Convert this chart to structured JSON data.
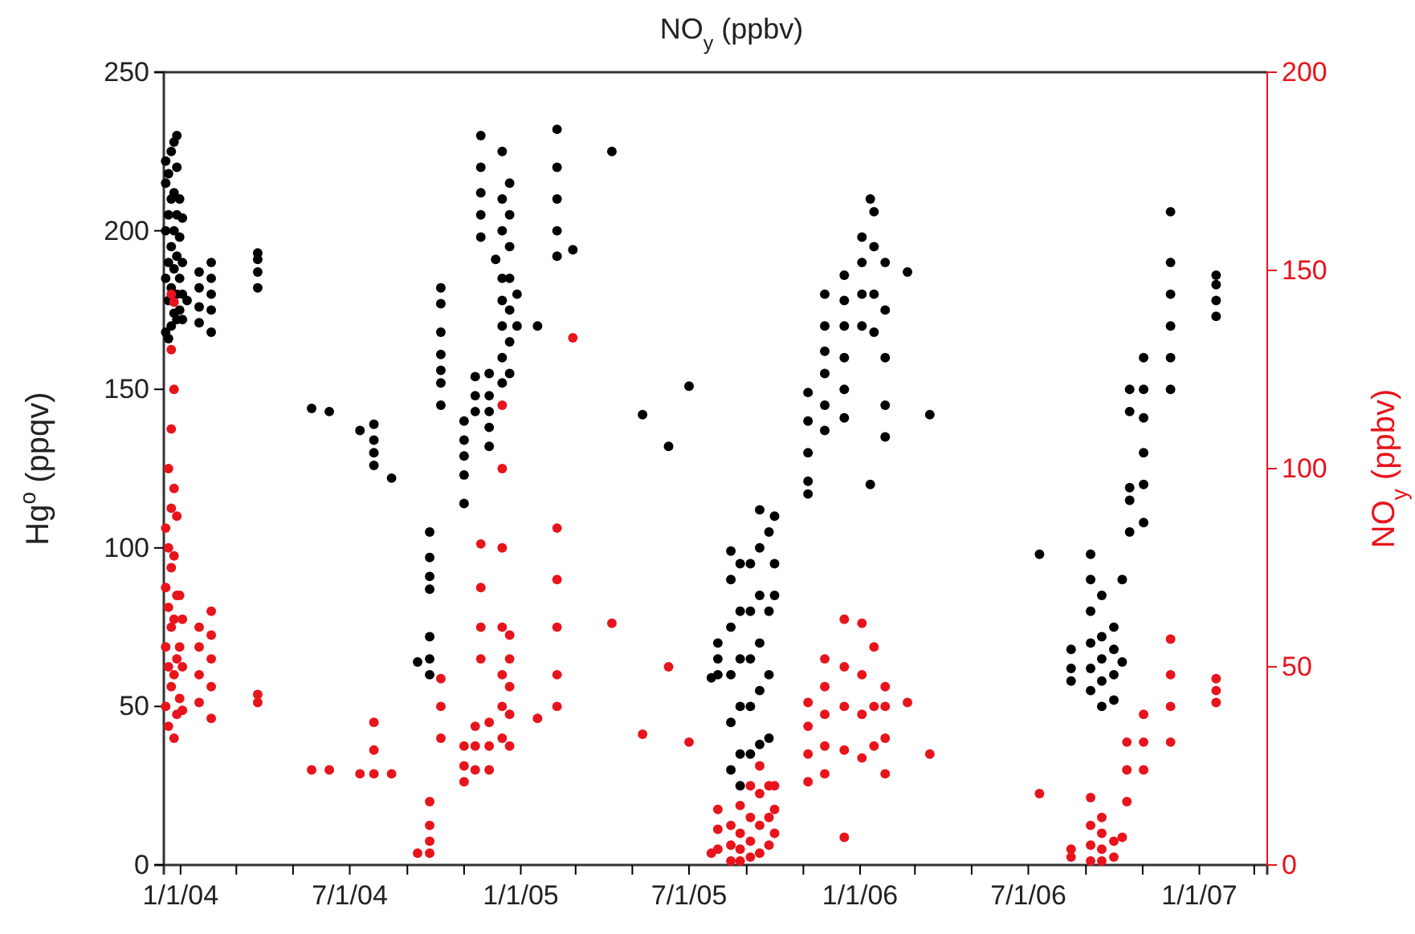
{
  "chart_data": {
    "type": "scatter",
    "title": "NO$_{y}$ (ppbv)",
    "ylabel": "Hg$^{o}$ (ppqv)",
    "y2label": "NO$_{y}$ (ppbv)",
    "xlim": [
      "2003-12-14",
      "2007-03-15"
    ],
    "xticks": [
      {
        "value": "2004-01-01",
        "label": "1/1/04"
      },
      {
        "value": "2004-03-01",
        "label": null
      },
      {
        "value": "2004-05-01",
        "label": null
      },
      {
        "value": "2004-07-01",
        "label": "7/1/04"
      },
      {
        "value": "2004-09-01",
        "label": null
      },
      {
        "value": "2004-11-01",
        "label": null
      },
      {
        "value": "2005-01-01",
        "label": "1/1/05"
      },
      {
        "value": "2005-03-01",
        "label": null
      },
      {
        "value": "2005-05-01",
        "label": null
      },
      {
        "value": "2005-07-01",
        "label": "7/1/05"
      },
      {
        "value": "2005-09-01",
        "label": null
      },
      {
        "value": "2005-11-01",
        "label": null
      },
      {
        "value": "2006-01-01",
        "label": "1/1/06"
      },
      {
        "value": "2006-03-01",
        "label": null
      },
      {
        "value": "2006-05-01",
        "label": null
      },
      {
        "value": "2006-07-01",
        "label": "7/1/06"
      },
      {
        "value": "2006-09-01",
        "label": null
      },
      {
        "value": "2006-11-01",
        "label": null
      },
      {
        "value": "2007-01-01",
        "label": "1/1/07"
      },
      {
        "value": "2007-03-01",
        "label": null
      }
    ],
    "ylim": [
      0,
      250
    ],
    "yticks": [
      0,
      50,
      100,
      150,
      200,
      250
    ],
    "y2lim": [
      0,
      200
    ],
    "y2ticks": [
      0,
      50,
      100,
      150,
      200
    ],
    "marker": "circle",
    "series": [
      {
        "color": "#000000",
        "x": [
          "2003-12-16",
          "2003-12-16",
          "2003-12-16",
          "2003-12-16",
          "2003-12-16",
          "2003-12-19",
          "2003-12-19",
          "2003-12-19",
          "2003-12-19",
          "2003-12-19",
          "2003-12-22",
          "2003-12-22",
          "2003-12-22",
          "2003-12-22",
          "2003-12-22",
          "2003-12-25",
          "2003-12-25",
          "2003-12-25",
          "2003-12-25",
          "2003-12-25",
          "2003-12-28",
          "2003-12-28",
          "2003-12-28",
          "2003-12-28",
          "2003-12-28",
          "2003-12-28",
          "2003-12-31",
          "2003-12-31",
          "2003-12-31",
          "2003-12-31",
          "2004-01-03",
          "2004-01-03",
          "2004-01-03",
          "2004-01-03",
          "2004-01-08",
          "2004-01-21",
          "2004-01-21",
          "2004-01-21",
          "2004-01-21",
          "2004-02-03",
          "2004-02-03",
          "2004-02-03",
          "2004-02-03",
          "2004-02-03",
          "2004-03-24",
          "2004-03-24",
          "2004-03-24",
          "2004-03-24",
          "2004-05-21",
          "2004-06-09",
          "2004-07-12",
          "2004-07-27",
          "2004-07-27",
          "2004-07-27",
          "2004-07-27",
          "2004-08-15",
          "2004-09-12",
          "2004-09-25",
          "2004-09-25",
          "2004-09-25",
          "2004-09-25",
          "2004-09-25",
          "2004-09-25",
          "2004-09-25",
          "2004-10-07",
          "2004-10-07",
          "2004-10-07",
          "2004-10-07",
          "2004-10-07",
          "2004-10-07",
          "2004-10-07",
          "2004-11-01",
          "2004-11-01",
          "2004-11-01",
          "2004-11-01",
          "2004-11-01",
          "2004-11-13",
          "2004-11-13",
          "2004-11-13",
          "2004-11-19",
          "2004-11-19",
          "2004-11-19",
          "2004-11-19",
          "2004-11-19",
          "2004-11-28",
          "2004-11-28",
          "2004-11-28",
          "2004-11-28",
          "2004-11-28",
          "2004-12-05",
          "2004-12-12",
          "2004-12-12",
          "2004-12-12",
          "2004-12-12",
          "2004-12-12",
          "2004-12-12",
          "2004-12-12",
          "2004-12-12",
          "2004-12-20",
          "2004-12-20",
          "2004-12-20",
          "2004-12-20",
          "2004-12-20",
          "2004-12-20",
          "2004-12-20",
          "2004-12-28",
          "2004-12-28",
          "2005-01-19",
          "2005-02-09",
          "2005-02-09",
          "2005-02-09",
          "2005-02-09",
          "2005-02-09",
          "2005-02-26",
          "2005-04-09",
          "2005-05-12",
          "2005-06-09",
          "2005-07-01",
          "2005-07-25",
          "2005-08-01",
          "2005-08-01",
          "2005-08-01",
          "2005-08-15",
          "2005-08-15",
          "2005-08-15",
          "2005-08-15",
          "2005-08-15",
          "2005-08-15",
          "2005-08-25",
          "2005-08-25",
          "2005-08-25",
          "2005-08-25",
          "2005-08-25",
          "2005-08-25",
          "2005-09-05",
          "2005-09-05",
          "2005-09-05",
          "2005-09-05",
          "2005-09-05",
          "2005-09-15",
          "2005-09-15",
          "2005-09-15",
          "2005-09-15",
          "2005-09-15",
          "2005-09-15",
          "2005-09-25",
          "2005-09-25",
          "2005-09-25",
          "2005-09-25",
          "2005-10-01",
          "2005-10-01",
          "2005-10-01",
          "2005-11-06",
          "2005-11-06",
          "2005-11-06",
          "2005-11-06",
          "2005-11-06",
          "2005-11-24",
          "2005-11-24",
          "2005-11-24",
          "2005-11-24",
          "2005-11-24",
          "2005-11-24",
          "2005-12-15",
          "2005-12-15",
          "2005-12-15",
          "2005-12-15",
          "2005-12-15",
          "2005-12-15",
          "2006-01-03",
          "2006-01-03",
          "2006-01-03",
          "2006-01-03",
          "2006-01-12",
          "2006-01-12",
          "2006-01-16",
          "2006-01-16",
          "2006-01-16",
          "2006-01-16",
          "2006-01-28",
          "2006-01-28",
          "2006-01-28",
          "2006-01-28",
          "2006-01-28",
          "2006-02-21",
          "2006-03-17",
          "2006-07-13",
          "2006-08-16",
          "2006-08-16",
          "2006-08-16",
          "2006-09-06",
          "2006-09-06",
          "2006-09-06",
          "2006-09-06",
          "2006-09-06",
          "2006-09-06",
          "2006-09-18",
          "2006-09-18",
          "2006-09-18",
          "2006-09-18",
          "2006-09-18",
          "2006-10-01",
          "2006-10-01",
          "2006-10-01",
          "2006-10-01",
          "2006-10-10",
          "2006-10-10",
          "2006-10-18",
          "2006-10-18",
          "2006-10-18",
          "2006-10-18",
          "2006-10-18",
          "2006-11-02",
          "2006-11-02",
          "2006-11-02",
          "2006-11-02",
          "2006-11-02",
          "2006-11-02",
          "2006-12-01",
          "2006-12-01",
          "2006-12-01",
          "2006-12-01",
          "2006-12-01",
          "2006-12-01",
          "2007-01-19",
          "2007-01-19",
          "2007-01-19",
          "2007-01-19"
        ],
        "values": [
          168,
          185,
          200,
          215,
          222,
          166,
          178,
          190,
          205,
          218,
          170,
          182,
          195,
          210,
          225,
          174,
          188,
          200,
          212,
          228,
          172,
          180,
          192,
          205,
          220,
          230,
          175,
          185,
          198,
          210,
          172,
          180,
          190,
          204,
          178,
          171,
          176,
          182,
          187,
          168,
          175,
          180,
          185,
          190,
          182,
          187,
          191,
          193,
          144,
          143,
          137,
          126,
          130,
          134,
          139,
          122,
          64,
          60,
          65,
          72,
          87,
          91,
          97,
          105,
          145,
          152,
          156,
          161,
          168,
          177,
          182,
          114,
          123,
          129,
          134,
          140,
          143,
          148,
          154,
          198,
          205,
          212,
          220,
          230,
          132,
          138,
          143,
          148,
          155,
          191,
          152,
          160,
          170,
          178,
          185,
          200,
          210,
          225,
          155,
          165,
          175,
          185,
          195,
          205,
          215,
          170,
          180,
          170,
          192,
          200,
          210,
          220,
          232,
          194,
          225,
          142,
          132,
          151,
          59,
          60,
          65,
          70,
          30,
          45,
          60,
          75,
          90,
          99,
          25,
          35,
          50,
          65,
          80,
          95,
          35,
          50,
          65,
          80,
          95,
          38,
          55,
          70,
          85,
          100,
          112,
          40,
          60,
          80,
          105,
          85,
          95,
          110,
          117,
          121,
          130,
          140,
          149,
          137,
          145,
          155,
          162,
          170,
          180,
          141,
          150,
          160,
          170,
          178,
          186,
          170,
          180,
          190,
          198,
          120,
          210,
          168,
          180,
          195,
          206,
          135,
          145,
          160,
          175,
          190,
          187,
          142,
          98,
          58,
          62,
          68,
          55,
          62,
          70,
          80,
          90,
          98,
          50,
          58,
          65,
          72,
          85,
          52,
          60,
          68,
          75,
          64,
          90,
          105,
          115,
          119,
          143,
          150,
          108,
          120,
          130,
          141,
          150,
          160,
          150,
          160,
          170,
          180,
          190,
          206,
          173,
          178,
          183,
          186
        ]
      },
      {
        "color": "#e8141c",
        "axis": "y2",
        "x": [
          "2003-12-16",
          "2003-12-16",
          "2003-12-16",
          "2003-12-16",
          "2003-12-19",
          "2003-12-19",
          "2003-12-19",
          "2003-12-19",
          "2003-12-19",
          "2003-12-22",
          "2003-12-22",
          "2003-12-22",
          "2003-12-22",
          "2003-12-22",
          "2003-12-22",
          "2003-12-22",
          "2003-12-25",
          "2003-12-25",
          "2003-12-25",
          "2003-12-25",
          "2003-12-25",
          "2003-12-25",
          "2003-12-25",
          "2003-12-28",
          "2003-12-28",
          "2003-12-28",
          "2003-12-28",
          "2003-12-31",
          "2003-12-31",
          "2003-12-31",
          "2004-01-03",
          "2004-01-03",
          "2004-01-03",
          "2004-01-21",
          "2004-01-21",
          "2004-01-21",
          "2004-01-21",
          "2004-02-03",
          "2004-02-03",
          "2004-02-03",
          "2004-02-03",
          "2004-02-03",
          "2004-03-24",
          "2004-03-24",
          "2004-05-21",
          "2004-06-09",
          "2004-07-12",
          "2004-07-27",
          "2004-07-27",
          "2004-07-27",
          "2004-08-15",
          "2004-09-12",
          "2004-09-25",
          "2004-09-25",
          "2004-09-25",
          "2004-09-25",
          "2004-10-07",
          "2004-10-07",
          "2004-10-07",
          "2004-11-01",
          "2004-11-01",
          "2004-11-01",
          "2004-11-13",
          "2004-11-13",
          "2004-11-13",
          "2004-11-19",
          "2004-11-19",
          "2004-11-19",
          "2004-11-19",
          "2004-11-28",
          "2004-11-28",
          "2004-11-28",
          "2004-12-12",
          "2004-12-12",
          "2004-12-12",
          "2004-12-12",
          "2004-12-12",
          "2004-12-12",
          "2004-12-12",
          "2004-12-20",
          "2004-12-20",
          "2004-12-20",
          "2004-12-20",
          "2004-12-20",
          "2005-01-19",
          "2005-02-09",
          "2005-02-09",
          "2005-02-09",
          "2005-02-09",
          "2005-02-09",
          "2005-02-26",
          "2005-04-09",
          "2005-05-12",
          "2005-06-09",
          "2005-07-01",
          "2005-07-25",
          "2005-08-01",
          "2005-08-01",
          "2005-08-01",
          "2005-08-15",
          "2005-08-15",
          "2005-08-15",
          "2005-08-25",
          "2005-08-25",
          "2005-08-25",
          "2005-08-25",
          "2005-09-05",
          "2005-09-05",
          "2005-09-05",
          "2005-09-05",
          "2005-09-15",
          "2005-09-15",
          "2005-09-15",
          "2005-09-15",
          "2005-09-25",
          "2005-09-25",
          "2005-09-25",
          "2005-10-01",
          "2005-10-01",
          "2005-10-01",
          "2005-11-06",
          "2005-11-06",
          "2005-11-06",
          "2005-11-06",
          "2005-11-24",
          "2005-11-24",
          "2005-11-24",
          "2005-11-24",
          "2005-11-24",
          "2005-12-15",
          "2005-12-15",
          "2005-12-15",
          "2005-12-15",
          "2005-12-15",
          "2006-01-03",
          "2006-01-03",
          "2006-01-03",
          "2006-01-03",
          "2006-01-16",
          "2006-01-16",
          "2006-01-16",
          "2006-01-28",
          "2006-01-28",
          "2006-01-28",
          "2006-01-28",
          "2006-02-21",
          "2006-03-17",
          "2006-07-13",
          "2006-08-16",
          "2006-08-16",
          "2006-09-06",
          "2006-09-06",
          "2006-09-06",
          "2006-09-06",
          "2006-09-18",
          "2006-09-18",
          "2006-09-18",
          "2006-09-18",
          "2006-10-01",
          "2006-10-01",
          "2006-10-10",
          "2006-10-15",
          "2006-10-15",
          "2006-10-15",
          "2006-11-02",
          "2006-11-02",
          "2006-11-02",
          "2006-12-01",
          "2006-12-01",
          "2006-12-01",
          "2006-12-01",
          "2007-01-19",
          "2007-01-19",
          "2007-01-19"
        ],
        "values": [
          40,
          55,
          70,
          85,
          35,
          50,
          65,
          80,
          100,
          45,
          60,
          75,
          90,
          110,
          130,
          144,
          32,
          48,
          62,
          78,
          95,
          120,
          142,
          38,
          52,
          68,
          88,
          42,
          55,
          68,
          39,
          50,
          62,
          41,
          48,
          55,
          60,
          37,
          45,
          52,
          58,
          64,
          41,
          43,
          24,
          24,
          23,
          23,
          29,
          36,
          23,
          3,
          3,
          6,
          10,
          16,
          32,
          40,
          47,
          21,
          25,
          30,
          24,
          30,
          35,
          52,
          60,
          70,
          81,
          24,
          30,
          36,
          32,
          40,
          48,
          60,
          80,
          100,
          116,
          30,
          38,
          45,
          52,
          58,
          37,
          40,
          48,
          60,
          72,
          85,
          133,
          61,
          33,
          50,
          31,
          3,
          4,
          9,
          14,
          1,
          5,
          10,
          1,
          4,
          8,
          15,
          2,
          6,
          12,
          20,
          3,
          10,
          18,
          25,
          5,
          12,
          20,
          8,
          14,
          20,
          21,
          28,
          35,
          41,
          23,
          30,
          38,
          45,
          52,
          7,
          29,
          40,
          50,
          62,
          27,
          38,
          48,
          61,
          30,
          40,
          55,
          23,
          32,
          40,
          45,
          41,
          28,
          18,
          2,
          4,
          1,
          5,
          10,
          17,
          1,
          4,
          8,
          12,
          2,
          6,
          7,
          16,
          24,
          31,
          24,
          31,
          38,
          31,
          40,
          48,
          57,
          41,
          44,
          47
        ]
      }
    ]
  }
}
